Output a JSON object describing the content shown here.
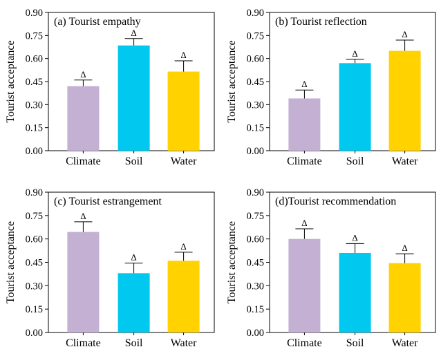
{
  "chart_data": [
    {
      "type": "bar",
      "title": "(a) Tourist empathy",
      "xlabel": "",
      "ylabel": "Tourist acceptance",
      "ylim": [
        0,
        0.9
      ],
      "yticks": [
        "0.00",
        "0.15",
        "0.30",
        "0.45",
        "0.60",
        "0.75",
        "0.90"
      ],
      "categories": [
        "Climate",
        "Soil",
        "Water"
      ],
      "values": [
        0.42,
        0.685,
        0.515
      ],
      "error": [
        0.04,
        0.045,
        0.07
      ],
      "colors": [
        "#c3b0d3",
        "#00c8ee",
        "#ffd200"
      ],
      "markers": [
        "Δ",
        "Δ",
        "Δ"
      ]
    },
    {
      "type": "bar",
      "title": "(b) Tourist reflection",
      "xlabel": "",
      "ylabel": "Tourist acceptance",
      "ylim": [
        0,
        0.9
      ],
      "yticks": [
        "0.00",
        "0.15",
        "0.30",
        "0.45",
        "0.60",
        "0.75",
        "0.90"
      ],
      "categories": [
        "Climate",
        "Soil",
        "Water"
      ],
      "values": [
        0.34,
        0.57,
        0.65
      ],
      "error": [
        0.055,
        0.025,
        0.07
      ],
      "colors": [
        "#c3b0d3",
        "#00c8ee",
        "#ffd200"
      ],
      "markers": [
        "Δ",
        "Δ",
        "Δ"
      ]
    },
    {
      "type": "bar",
      "title": "(c) Tourist estrangement",
      "xlabel": "",
      "ylabel": "Tourist acceptance",
      "ylim": [
        0,
        0.9
      ],
      "yticks": [
        "0.00",
        "0.15",
        "0.30",
        "0.45",
        "0.60",
        "0.75",
        "0.90"
      ],
      "categories": [
        "Climate",
        "Soil",
        "Water"
      ],
      "values": [
        0.645,
        0.38,
        0.46
      ],
      "error": [
        0.065,
        0.065,
        0.055
      ],
      "colors": [
        "#c3b0d3",
        "#00c8ee",
        "#ffd200"
      ],
      "markers": [
        "Δ",
        "Δ",
        "Δ"
      ]
    },
    {
      "type": "bar",
      "title": "(d)Tourist recommendation",
      "xlabel": "",
      "ylabel": "Tourist acceptance",
      "ylim": [
        0,
        0.9
      ],
      "yticks": [
        "0.00",
        "0.15",
        "0.30",
        "0.45",
        "0.60",
        "0.75",
        "0.90"
      ],
      "categories": [
        "Climate",
        "Soil",
        "Water"
      ],
      "values": [
        0.6,
        0.51,
        0.445
      ],
      "error": [
        0.065,
        0.06,
        0.06
      ],
      "colors": [
        "#c3b0d3",
        "#00c8ee",
        "#ffd200"
      ],
      "markers": [
        "Δ",
        "Δ",
        "Δ"
      ]
    }
  ]
}
